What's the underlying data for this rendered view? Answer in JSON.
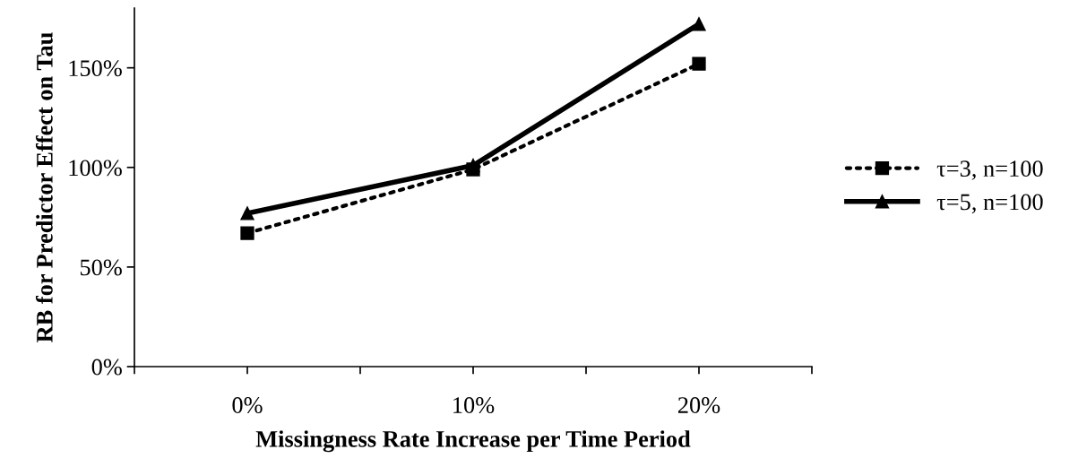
{
  "chart_data": {
    "type": "line",
    "xlabel": "Missingness Rate Increase per Time Period",
    "ylabel": "RB for Predictor Effect on Tau",
    "categories": [
      "0%",
      "10%",
      "20%"
    ],
    "series": [
      {
        "name": "τ=3, n=100",
        "color": "#000000",
        "values": [
          67,
          99,
          152
        ],
        "marker": "square",
        "line_style": "dotted"
      },
      {
        "name": "τ=5, n=100",
        "color": "#000000",
        "values": [
          77,
          101,
          172
        ],
        "marker": "triangle",
        "line_style": "solid"
      }
    ],
    "ylim": [
      0,
      180
    ],
    "yticks": [
      {
        "value": 0,
        "label": "0%"
      },
      {
        "value": 50,
        "label": "50%"
      },
      {
        "value": 100,
        "label": "100%"
      },
      {
        "value": 150,
        "label": "150%"
      }
    ],
    "grid": false,
    "legend": "right"
  }
}
